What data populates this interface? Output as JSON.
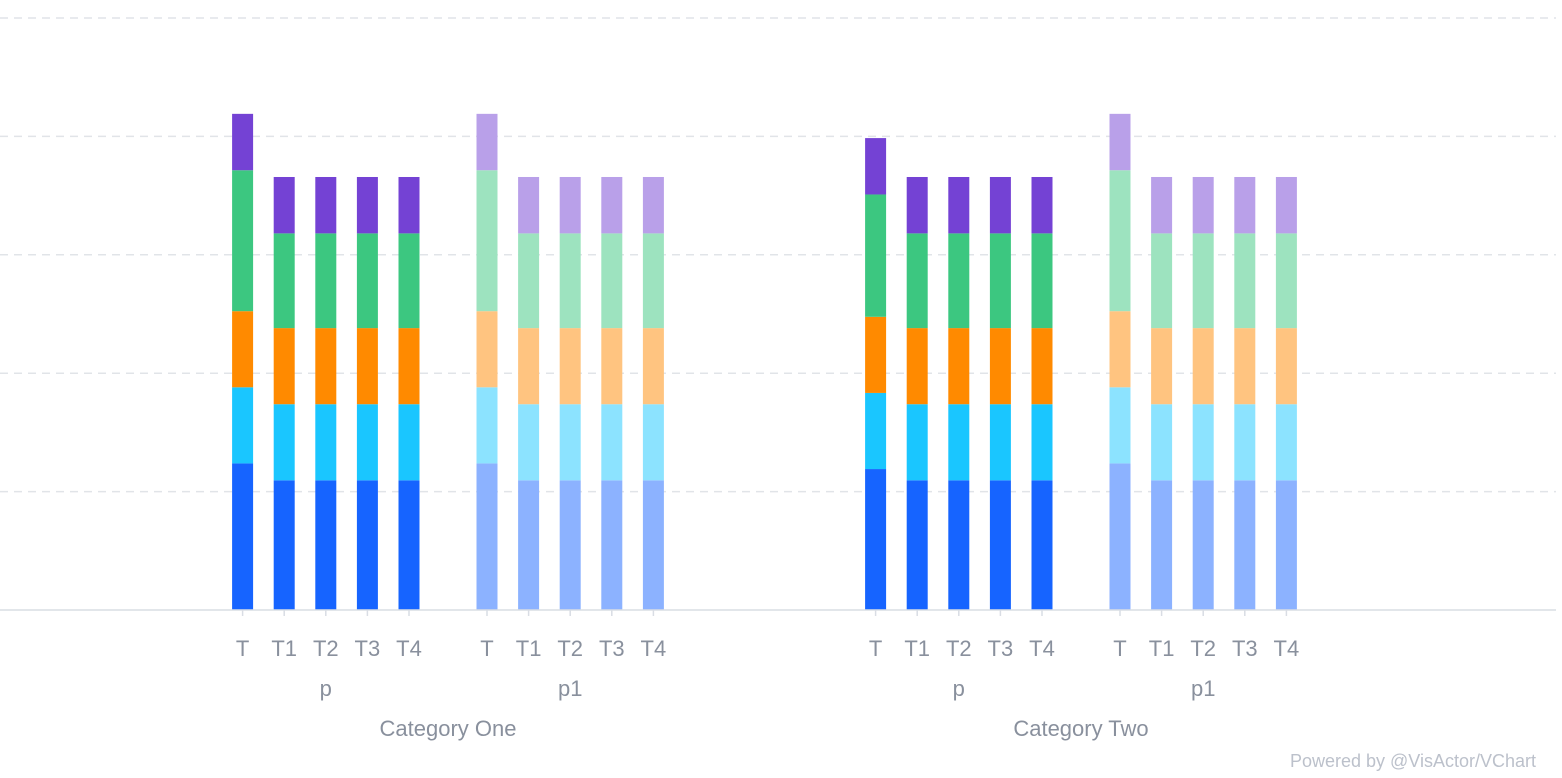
{
  "chart_data": {
    "type": "bar",
    "stacked": true,
    "grid": true,
    "y_tick_labels_shown": false,
    "ylim": [
      0,
      1.05
    ],
    "segment_order": [
      "s1",
      "s2",
      "s3",
      "s4",
      "s5"
    ],
    "colors": {
      "p": [
        "#1664ff",
        "#1ac6ff",
        "#ff8a00",
        "#3cc780",
        "#7442d4"
      ],
      "p1": [
        "#8cb2ff",
        "#8ce3ff",
        "#ffc480",
        "#9de3bf",
        "#b9a0e9"
      ]
    },
    "categories": [
      {
        "label": "Category One",
        "groups": [
          {
            "name": "p",
            "bars": [
              {
                "tick": "T",
                "values": [
                  0.26,
                  0.135,
                  0.135,
                  0.25,
                  0.1
                ]
              },
              {
                "tick": "T1",
                "values": [
                  0.23,
                  0.135,
                  0.135,
                  0.168,
                  0.1
                ]
              },
              {
                "tick": "T2",
                "values": [
                  0.23,
                  0.135,
                  0.135,
                  0.168,
                  0.1
                ]
              },
              {
                "tick": "T3",
                "values": [
                  0.23,
                  0.135,
                  0.135,
                  0.168,
                  0.1
                ]
              },
              {
                "tick": "T4",
                "values": [
                  0.23,
                  0.135,
                  0.135,
                  0.168,
                  0.1
                ]
              }
            ]
          },
          {
            "name": "p1",
            "bars": [
              {
                "tick": "T",
                "values": [
                  0.26,
                  0.135,
                  0.135,
                  0.25,
                  0.1
                ]
              },
              {
                "tick": "T1",
                "values": [
                  0.23,
                  0.135,
                  0.135,
                  0.168,
                  0.1
                ]
              },
              {
                "tick": "T2",
                "values": [
                  0.23,
                  0.135,
                  0.135,
                  0.168,
                  0.1
                ]
              },
              {
                "tick": "T3",
                "values": [
                  0.23,
                  0.135,
                  0.135,
                  0.168,
                  0.1
                ]
              },
              {
                "tick": "T4",
                "values": [
                  0.23,
                  0.135,
                  0.135,
                  0.168,
                  0.1
                ]
              }
            ]
          }
        ]
      },
      {
        "label": "Category Two",
        "groups": [
          {
            "name": "p",
            "bars": [
              {
                "tick": "T",
                "values": [
                  0.25,
                  0.135,
                  0.135,
                  0.217,
                  0.1
                ]
              },
              {
                "tick": "T1",
                "values": [
                  0.23,
                  0.135,
                  0.135,
                  0.168,
                  0.1
                ]
              },
              {
                "tick": "T2",
                "values": [
                  0.23,
                  0.135,
                  0.135,
                  0.168,
                  0.1
                ]
              },
              {
                "tick": "T3",
                "values": [
                  0.23,
                  0.135,
                  0.135,
                  0.168,
                  0.1
                ]
              },
              {
                "tick": "T4",
                "values": [
                  0.23,
                  0.135,
                  0.135,
                  0.168,
                  0.1
                ]
              }
            ]
          },
          {
            "name": "p1",
            "bars": [
              {
                "tick": "T",
                "values": [
                  0.26,
                  0.135,
                  0.135,
                  0.25,
                  0.1
                ]
              },
              {
                "tick": "T1",
                "values": [
                  0.23,
                  0.135,
                  0.135,
                  0.168,
                  0.1
                ]
              },
              {
                "tick": "T2",
                "values": [
                  0.23,
                  0.135,
                  0.135,
                  0.168,
                  0.1
                ]
              },
              {
                "tick": "T3",
                "values": [
                  0.23,
                  0.135,
                  0.135,
                  0.168,
                  0.1
                ]
              },
              {
                "tick": "T4",
                "values": [
                  0.23,
                  0.135,
                  0.135,
                  0.168,
                  0.1
                ]
              }
            ]
          }
        ]
      }
    ]
  },
  "watermark": "Powered by @VisActor/VChart"
}
